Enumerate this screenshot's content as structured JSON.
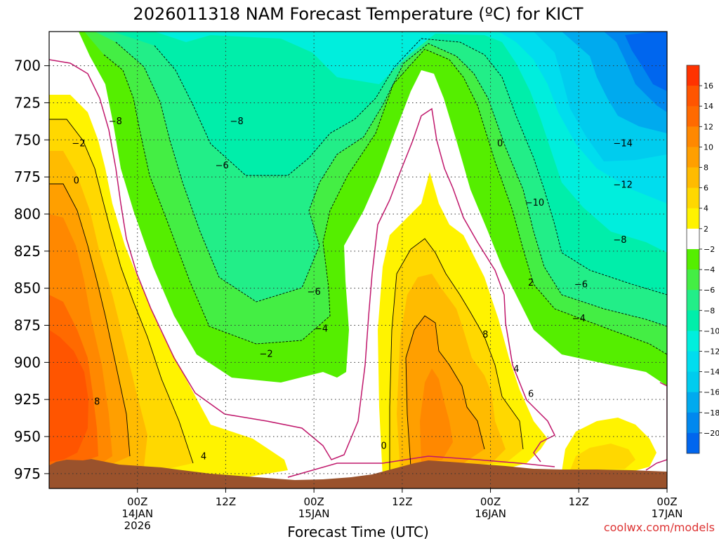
{
  "chart_data": {
    "type": "heatmap",
    "title": "2026011318 NAM Forecast Temperature (ºC) for KICT",
    "xlabel": "Forecast Time (UTC)",
    "ylabel": "",
    "watermark": "coolwx.com/models",
    "x_range_hours": [
      -6,
      78
    ],
    "x_ticks": [
      {
        "hour": 6,
        "label": "00Z",
        "sub": [
          "14JAN",
          "2026"
        ]
      },
      {
        "hour": 18,
        "label": "12Z",
        "sub": []
      },
      {
        "hour": 30,
        "label": "00Z",
        "sub": [
          "15JAN"
        ]
      },
      {
        "hour": 42,
        "label": "12Z",
        "sub": []
      },
      {
        "hour": 54,
        "label": "00Z",
        "sub": [
          "16JAN"
        ]
      },
      {
        "hour": 66,
        "label": "12Z",
        "sub": []
      },
      {
        "hour": 78,
        "label": "00Z",
        "sub": [
          "17JAN"
        ]
      }
    ],
    "y_range_hpa": [
      677,
      985
    ],
    "y_ticks": [
      700,
      725,
      750,
      775,
      800,
      825,
      850,
      875,
      900,
      925,
      950,
      975
    ],
    "grid": true,
    "surface_color": "#9a522c",
    "freezing_line_color": "#c0186c",
    "levels": [
      {
        "min": 16,
        "max": 18,
        "color": "#ff3300"
      },
      {
        "min": 14,
        "max": 16,
        "color": "#ff5500"
      },
      {
        "min": 12,
        "max": 14,
        "color": "#ff6a00"
      },
      {
        "min": 10,
        "max": 12,
        "color": "#ff8800"
      },
      {
        "min": 8,
        "max": 10,
        "color": "#ff9f00"
      },
      {
        "min": 6,
        "max": 8,
        "color": "#ffbb00"
      },
      {
        "min": 4,
        "max": 6,
        "color": "#ffd800"
      },
      {
        "min": 2,
        "max": 4,
        "color": "#fff300"
      },
      {
        "min": -2,
        "max": 2,
        "color": "#ffffff"
      },
      {
        "min": -4,
        "max": -2,
        "color": "#55ee00"
      },
      {
        "min": -6,
        "max": -4,
        "color": "#44ee44"
      },
      {
        "min": -8,
        "max": -6,
        "color": "#22ee88"
      },
      {
        "min": -10,
        "max": -8,
        "color": "#00eeaa"
      },
      {
        "min": -12,
        "max": -10,
        "color": "#00eedd"
      },
      {
        "min": -14,
        "max": -12,
        "color": "#00ddee"
      },
      {
        "min": -16,
        "max": -14,
        "color": "#00ccee"
      },
      {
        "min": -18,
        "max": -16,
        "color": "#00aaee"
      },
      {
        "min": -20,
        "max": -18,
        "color": "#0088ee"
      },
      {
        "min": -22,
        "max": -20,
        "color": "#0066ee"
      }
    ],
    "colorbar_labels": [
      "16",
      "14",
      "12",
      "10",
      "8",
      "6",
      "4",
      "2",
      "−2",
      "−4",
      "−6",
      "−8",
      "−10",
      "−12",
      "−14",
      "−16",
      "−18",
      "−20"
    ],
    "contour_labels": [
      {
        "text": "−8",
        "hour": 3,
        "p": 737
      },
      {
        "text": "−8",
        "hour": 19.5,
        "p": 737
      },
      {
        "text": "−2",
        "hour": -2,
        "p": 752
      },
      {
        "text": "0",
        "hour": -2.3,
        "p": 777
      },
      {
        "text": "−6",
        "hour": 17.5,
        "p": 767
      },
      {
        "text": "−6",
        "hour": 30,
        "p": 852
      },
      {
        "text": "−4",
        "hour": 31,
        "p": 877
      },
      {
        "text": "−2",
        "hour": 23.5,
        "p": 894
      },
      {
        "text": "8",
        "hour": 0.5,
        "p": 926
      },
      {
        "text": "4",
        "hour": 15,
        "p": 963
      },
      {
        "text": "0",
        "hour": 39.5,
        "p": 956
      },
      {
        "text": "0",
        "hour": 55.3,
        "p": 752
      },
      {
        "text": "2",
        "hour": 59.5,
        "p": 846
      },
      {
        "text": "8",
        "hour": 53.3,
        "p": 881
      },
      {
        "text": "4",
        "hour": 57.5,
        "p": 904
      },
      {
        "text": "6",
        "hour": 59.5,
        "p": 921
      },
      {
        "text": "−10",
        "hour": 60,
        "p": 792
      },
      {
        "text": "−14",
        "hour": 72,
        "p": 752
      },
      {
        "text": "−12",
        "hour": 72,
        "p": 780
      },
      {
        "text": "−8",
        "hour": 71.6,
        "p": 817
      },
      {
        "text": "−6",
        "hour": 66.3,
        "p": 847
      },
      {
        "text": "−4",
        "hour": 66,
        "p": 870
      }
    ]
  }
}
